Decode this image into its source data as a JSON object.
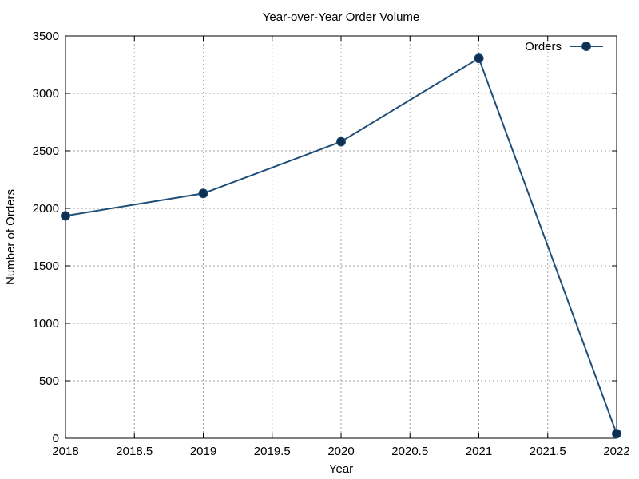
{
  "chart_data": {
    "type": "line",
    "title": "Year-over-Year Order Volume",
    "xlabel": "Year",
    "ylabel": "Number of Orders",
    "xlim": [
      2018,
      2022
    ],
    "ylim": [
      0,
      3500
    ],
    "x_ticks": [
      "2018",
      "2018.5",
      "2019",
      "2019.5",
      "2020",
      "2020.5",
      "2021",
      "2021.5",
      "2022"
    ],
    "y_ticks": [
      "0",
      "500",
      "1000",
      "1500",
      "2000",
      "2500",
      "3000",
      "3500"
    ],
    "grid": true,
    "legend_position": "top-right",
    "series": [
      {
        "name": "Orders",
        "color": "#1f4e79",
        "marker_color": "#0d2f52",
        "x": [
          2018,
          2019,
          2020,
          2021,
          2022
        ],
        "y": [
          1935,
          2130,
          2580,
          3305,
          40
        ]
      }
    ]
  }
}
